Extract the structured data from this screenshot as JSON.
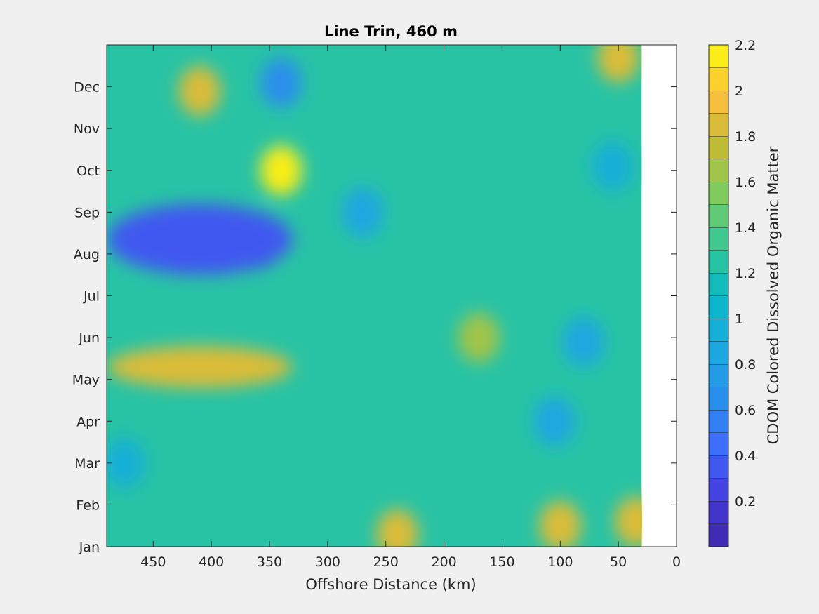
{
  "chart_data": {
    "type": "heatmap",
    "subtype": "filled-contour",
    "title": "Line Trin, 460 m",
    "xlabel": "Offshore Distance (km)",
    "ylabel": "",
    "colorbar_label": "CDOM Colored Dissolved Organic Matter",
    "colormap": "parula",
    "xlim": [
      490,
      0
    ],
    "x_reversed": true,
    "x_ticks": [
      450,
      400,
      350,
      300,
      250,
      200,
      150,
      100,
      50,
      0
    ],
    "x_tick_labels": [
      "450",
      "400",
      "350",
      "300",
      "250",
      "200",
      "150",
      "100",
      "50",
      "0"
    ],
    "data_x_extent": [
      490,
      30
    ],
    "y_ticks": [
      "Jan",
      "Feb",
      "Mar",
      "Apr",
      "May",
      "Jun",
      "Jul",
      "Aug",
      "Sep",
      "Oct",
      "Nov",
      "Dec"
    ],
    "y_month_index": [
      0,
      1,
      2,
      3,
      4,
      5,
      6,
      7,
      8,
      9,
      10,
      11
    ],
    "ylim": [
      0,
      12
    ],
    "clim": [
      0,
      2.2
    ],
    "colorbar_ticks": [
      0.2,
      0.4,
      0.6,
      0.8,
      1,
      1.2,
      1.4,
      1.6,
      1.8,
      2,
      2.2
    ],
    "colorbar_tick_labels": [
      "0.2",
      "0.4",
      "0.6",
      "0.8",
      "1",
      "1.2",
      "1.4",
      "1.6",
      "1.8",
      "2",
      "2.2"
    ],
    "contour_levels": 22,
    "grid": false,
    "features": [
      {
        "desc": "low CDOM minimum",
        "x": 360,
        "y": 7.25,
        "value": 0.1
      },
      {
        "desc": "low CDOM band",
        "x_range": [
          490,
          330
        ],
        "y_range": [
          6.5,
          8.2
        ],
        "value": 0.3
      },
      {
        "desc": "high CDOM maximum",
        "x": 340,
        "y": 9.0,
        "value": 2.1
      },
      {
        "desc": "high CDOM maximum",
        "x": 410,
        "y": 10.9,
        "value": 1.9
      },
      {
        "desc": "low CDOM pocket",
        "x": 340,
        "y": 11.1,
        "value": 0.7
      },
      {
        "desc": "high CDOM band",
        "x_range": [
          490,
          330
        ],
        "y_range": [
          3.8,
          4.8
        ],
        "value": 1.8
      },
      {
        "desc": "low CDOM pocket",
        "x": 270,
        "y": 8.0,
        "value": 0.8
      },
      {
        "desc": "high CDOM pocket",
        "x": 240,
        "y": 0.3,
        "value": 1.8
      },
      {
        "desc": "high CDOM pocket",
        "x": 100,
        "y": 0.5,
        "value": 1.8
      },
      {
        "desc": "high CDOM pocket",
        "x": 35,
        "y": 0.6,
        "value": 1.9
      },
      {
        "desc": "high CDOM pocket",
        "x": 170,
        "y": 5.0,
        "value": 1.7
      },
      {
        "desc": "high CDOM pocket",
        "x": 50,
        "y": 11.7,
        "value": 1.8
      },
      {
        "desc": "low CDOM pocket",
        "x": 105,
        "y": 3.0,
        "value": 0.8
      },
      {
        "desc": "low CDOM pocket",
        "x": 80,
        "y": 4.9,
        "value": 0.8
      },
      {
        "desc": "low CDOM pocket",
        "x": 55,
        "y": 9.1,
        "value": 0.9
      },
      {
        "desc": "low CDOM pocket",
        "x": 475,
        "y": 2.0,
        "value": 0.9
      }
    ]
  }
}
